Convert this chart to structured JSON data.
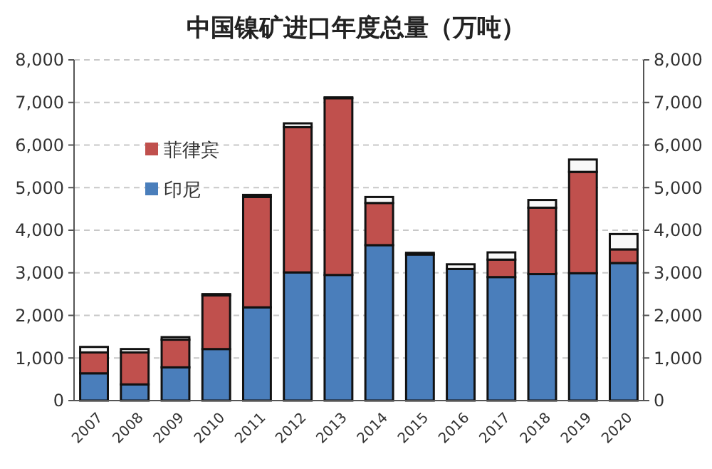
{
  "chart_data": {
    "type": "bar",
    "title": "中国镍矿进口年度总量（万吨）",
    "stacked": true,
    "categories": [
      "2007",
      "2008",
      "2009",
      "2010",
      "2011",
      "2012",
      "2013",
      "2014",
      "2015",
      "2016",
      "2017",
      "2018",
      "2019",
      "2020"
    ],
    "series": [
      {
        "name": "印尼",
        "color": "#4a7ebb",
        "values": [
          640,
          380,
          780,
          1210,
          2190,
          3010,
          2950,
          3650,
          3430,
          3090,
          2900,
          2970,
          2990,
          3230
        ]
      },
      {
        "name": "菲律宾",
        "color": "#c0504d",
        "values": [
          490,
          750,
          650,
          1260,
          2590,
          3410,
          4150,
          990,
          null,
          0,
          410,
          1560,
          2380,
          320
        ]
      },
      {
        "color": "#f8f8f8",
        "values": [
          130,
          80,
          60,
          30,
          50,
          90,
          20,
          140,
          40,
          110,
          170,
          180,
          290,
          360
        ]
      }
    ],
    "ylim": [
      0,
      8000
    ],
    "yticks": [
      {
        "value": 0,
        "label": "0"
      },
      {
        "value": 1000,
        "label": "1,000"
      },
      {
        "value": 2000,
        "label": "2,000"
      },
      {
        "value": 3000,
        "label": "3,000"
      },
      {
        "value": 4000,
        "label": "4,000"
      },
      {
        "value": 5000,
        "label": "5,000"
      },
      {
        "value": 6000,
        "label": "6,000"
      },
      {
        "value": 7000,
        "label": "7,000"
      },
      {
        "value": 8000,
        "label": "8,000"
      }
    ],
    "y2lim": [
      0,
      8000
    ],
    "y2ticks": [
      {
        "value": 0,
        "label": "0"
      },
      {
        "value": 1000,
        "label": "1,000"
      },
      {
        "value": 2000,
        "label": "2,000"
      },
      {
        "value": 3000,
        "label": "3,000"
      },
      {
        "value": 4000,
        "label": "4,000"
      },
      {
        "value": 5000,
        "label": "5,000"
      },
      {
        "value": 6000,
        "label": "6,000"
      },
      {
        "value": 7000,
        "label": "7,000"
      },
      {
        "value": 8000,
        "label": "8,000"
      }
    ],
    "grid": "y",
    "legend": "top left"
  }
}
